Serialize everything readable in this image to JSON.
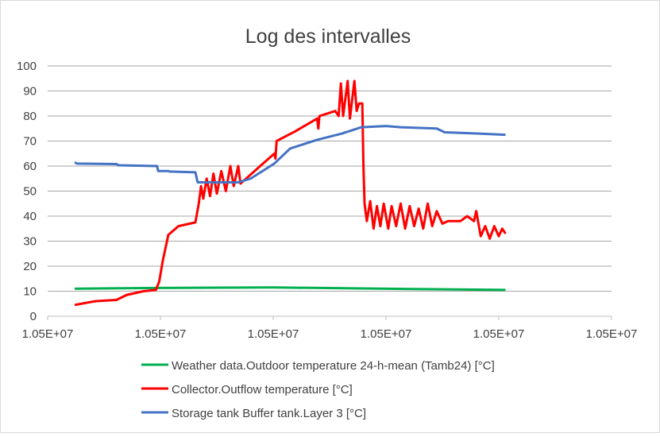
{
  "chart_data": {
    "type": "line",
    "title": "Log des intervalles",
    "xlabel": "",
    "ylabel": "",
    "ylim": [
      0,
      100
    ],
    "yticks": [
      "0",
      "10",
      "20",
      "30",
      "40",
      "50",
      "60",
      "70",
      "80",
      "90",
      "100"
    ],
    "xticks": [
      "1.05E+07",
      "1.05E+07",
      "1.05E+07",
      "1.05E+07",
      "1.05E+07",
      "1.05E+07"
    ],
    "x_note_units": "tick index (all tick labels read 1.05E+07)",
    "grid": true,
    "legend_position": "bottom",
    "series": [
      {
        "name": "Weather data.Outdoor temperature 24-h-mean (Tamb24) [°C]",
        "color": "#00b050",
        "points": [
          [
            0.24,
            11
          ],
          [
            1.0,
            11.3
          ],
          [
            2.0,
            11.5
          ],
          [
            3.0,
            11
          ],
          [
            4.06,
            10.5
          ]
        ]
      },
      {
        "name": "Collector.Outflow temperature [°C]",
        "color": "#ff0000",
        "points": [
          [
            0.24,
            4.5
          ],
          [
            0.42,
            6
          ],
          [
            0.61,
            6.5
          ],
          [
            0.7,
            8.5
          ],
          [
            0.85,
            10
          ],
          [
            0.96,
            10.5
          ],
          [
            0.99,
            14
          ],
          [
            1.02,
            22
          ],
          [
            1.07,
            32.5
          ],
          [
            1.16,
            36
          ],
          [
            1.31,
            37.5
          ],
          [
            1.34,
            45
          ],
          [
            1.36,
            52
          ],
          [
            1.38,
            47
          ],
          [
            1.41,
            55
          ],
          [
            1.44,
            48
          ],
          [
            1.47,
            57
          ],
          [
            1.5,
            49
          ],
          [
            1.54,
            58
          ],
          [
            1.58,
            50
          ],
          [
            1.62,
            60
          ],
          [
            1.65,
            52
          ],
          [
            1.69,
            60
          ],
          [
            1.71,
            53
          ],
          [
            2.01,
            65
          ],
          [
            2.02,
            63
          ],
          [
            2.03,
            70
          ],
          [
            2.2,
            74
          ],
          [
            2.39,
            79
          ],
          [
            2.4,
            75
          ],
          [
            2.41,
            80
          ],
          [
            2.55,
            82
          ],
          [
            2.58,
            80
          ],
          [
            2.6,
            93
          ],
          [
            2.62,
            80
          ],
          [
            2.66,
            94
          ],
          [
            2.68,
            79
          ],
          [
            2.72,
            94
          ],
          [
            2.74,
            82
          ],
          [
            2.76,
            85
          ],
          [
            2.79,
            85
          ],
          [
            2.8,
            60
          ],
          [
            2.81,
            45
          ],
          [
            2.83,
            38
          ],
          [
            2.86,
            46
          ],
          [
            2.89,
            35
          ],
          [
            2.92,
            44
          ],
          [
            2.95,
            36
          ],
          [
            2.98,
            45
          ],
          [
            3.02,
            35
          ],
          [
            3.05,
            44
          ],
          [
            3.09,
            36
          ],
          [
            3.13,
            45
          ],
          [
            3.17,
            35
          ],
          [
            3.21,
            44
          ],
          [
            3.25,
            36
          ],
          [
            3.29,
            43
          ],
          [
            3.33,
            35
          ],
          [
            3.37,
            45
          ],
          [
            3.41,
            36
          ],
          [
            3.45,
            42
          ],
          [
            3.5,
            37
          ],
          [
            3.55,
            38
          ],
          [
            3.66,
            38
          ],
          [
            3.72,
            40
          ],
          [
            3.78,
            38
          ],
          [
            3.8,
            42
          ],
          [
            3.84,
            32
          ],
          [
            3.88,
            36
          ],
          [
            3.92,
            31
          ],
          [
            3.96,
            36
          ],
          [
            4.0,
            32
          ],
          [
            4.03,
            35
          ],
          [
            4.06,
            33
          ]
        ]
      },
      {
        "name": "Storage tank Buffer tank.Layer 3 [°C]",
        "color": "#4472c4",
        "points": [
          [
            0.24,
            61.5
          ],
          [
            0.26,
            61
          ],
          [
            0.61,
            60.8
          ],
          [
            0.63,
            60.3
          ],
          [
            0.97,
            60
          ],
          [
            0.98,
            58
          ],
          [
            1.07,
            58
          ],
          [
            1.08,
            57.8
          ],
          [
            1.31,
            57.5
          ],
          [
            1.33,
            53.5
          ],
          [
            1.69,
            53.5
          ],
          [
            1.8,
            55
          ],
          [
            2.01,
            61
          ],
          [
            2.15,
            67
          ],
          [
            2.39,
            70.5
          ],
          [
            2.61,
            73
          ],
          [
            2.78,
            75.5
          ],
          [
            3.0,
            76
          ],
          [
            3.13,
            75.5
          ],
          [
            3.45,
            75
          ],
          [
            3.52,
            73.5
          ],
          [
            3.8,
            73
          ],
          [
            4.06,
            72.5
          ]
        ]
      }
    ]
  }
}
